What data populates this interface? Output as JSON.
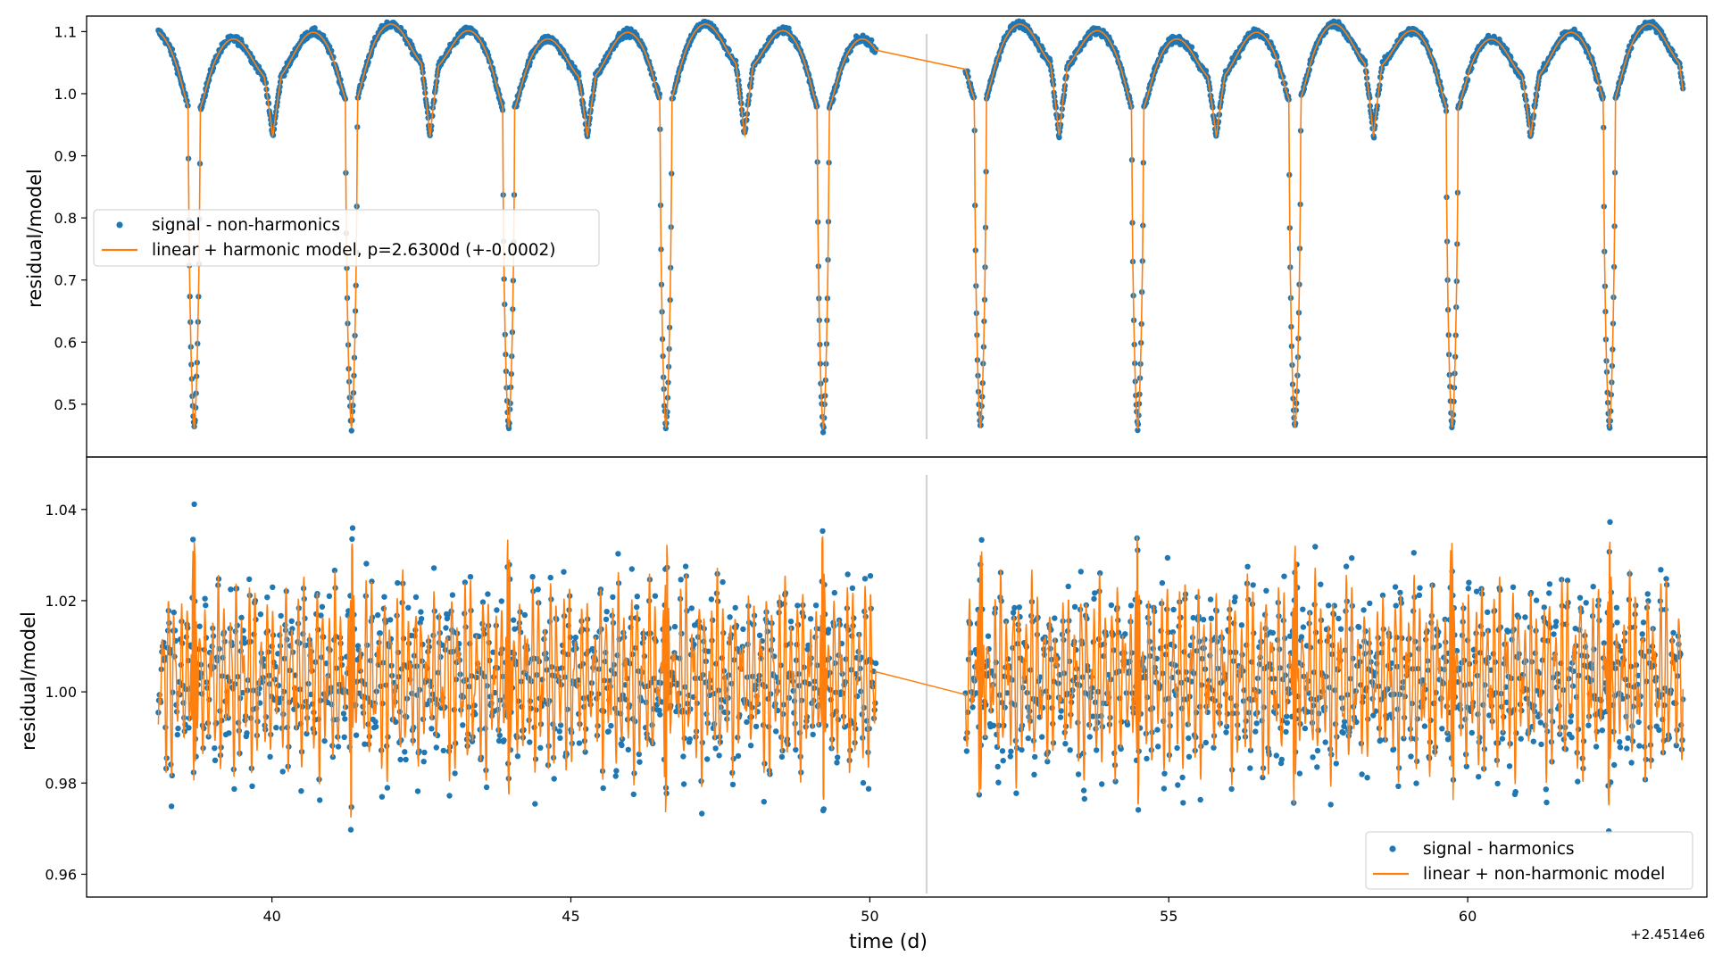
{
  "figure": {
    "xlabel": "time (d)",
    "offset_label": "+2.4514e6"
  },
  "colors": {
    "signal": "#1f77b4",
    "model": "#ff7f0e",
    "gap_line": "#d3d3d3",
    "axes": "#000000"
  },
  "chart_data": [
    {
      "type": "scatter",
      "panel": "top",
      "ylabel": "residual/model",
      "xlim": [
        36.9,
        64.0
      ],
      "ylim": [
        0.415,
        1.125
      ],
      "x_ticks": [
        "40",
        "45",
        "50",
        "55",
        "60"
      ],
      "x_tick_values": [
        40,
        45,
        50,
        55,
        60
      ],
      "y_ticks": [
        "0.5",
        "0.6",
        "0.7",
        "0.8",
        "0.9",
        "1.0",
        "1.1"
      ],
      "y_tick_values": [
        0.5,
        0.6,
        0.7,
        0.8,
        0.9,
        1.0,
        1.1
      ],
      "x_range_segments": [
        [
          38.1,
          50.1
        ],
        [
          51.6,
          63.6
        ]
      ],
      "gap_marker_x": 50.95,
      "period_days": 2.63,
      "primary_eclipse_times": [
        38.7,
        41.33,
        43.96,
        46.59,
        49.22,
        51.85,
        54.48,
        57.11,
        59.74,
        62.37
      ],
      "primary_eclipse_depth": 0.46,
      "secondary_eclipse_depth": 0.93,
      "max_flux": [
        1.075,
        1.095
      ],
      "grid": false,
      "legend_position": "center-left",
      "series": [
        {
          "name": "signal - non-harmonics",
          "kind": "scatter"
        },
        {
          "name": "linear + harmonic model, p=2.6300d (+-0.0002)",
          "kind": "line"
        }
      ]
    },
    {
      "type": "scatter",
      "panel": "bottom",
      "ylabel": "residual/model",
      "xlim": [
        36.9,
        64.0
      ],
      "ylim": [
        0.955,
        1.0515
      ],
      "x_ticks": [
        "40",
        "45",
        "50",
        "55",
        "60"
      ],
      "x_tick_values": [
        40,
        45,
        50,
        55,
        60
      ],
      "y_ticks": [
        "0.96",
        "0.98",
        "1.00",
        "1.02",
        "1.04"
      ],
      "y_tick_values": [
        0.96,
        0.98,
        1.0,
        1.02,
        1.04
      ],
      "x_range_segments": [
        [
          38.1,
          50.1
        ],
        [
          51.6,
          63.6
        ]
      ],
      "gap_marker_x": 50.95,
      "center": 1.0,
      "typical_range": [
        0.978,
        1.028
      ],
      "extreme_range": [
        0.961,
        1.047
      ],
      "gap_connector": [
        [
          50.1,
          1.009
        ],
        [
          51.6,
          0.989
        ]
      ],
      "grid": false,
      "legend_position": "lower-right",
      "series": [
        {
          "name": "signal - harmonics",
          "kind": "scatter"
        },
        {
          "name": "linear + non-harmonic model",
          "kind": "line"
        }
      ]
    }
  ]
}
